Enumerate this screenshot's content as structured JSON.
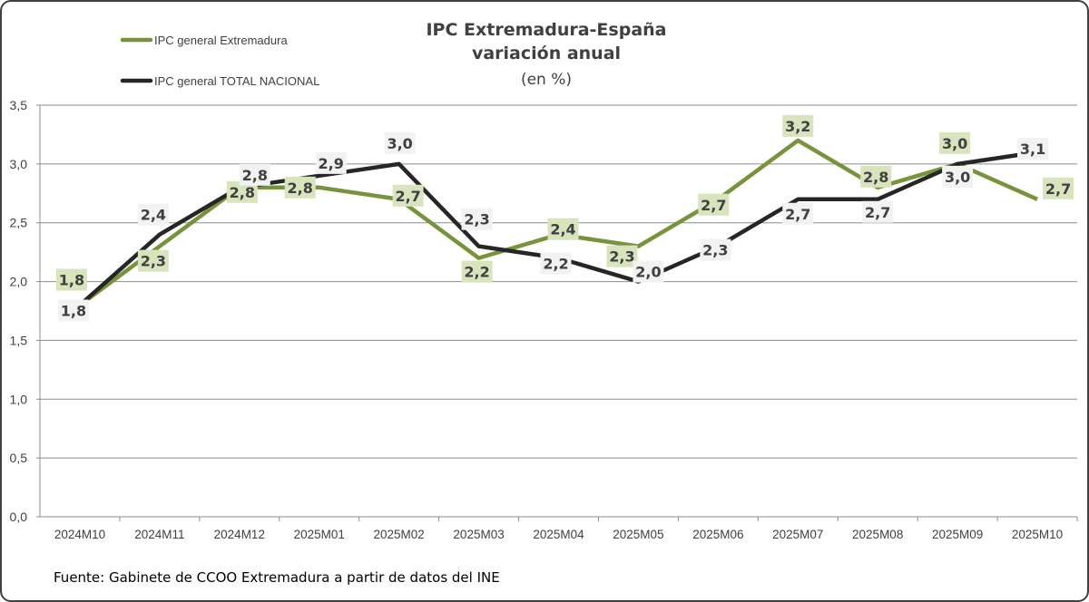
{
  "chart_data": {
    "type": "line",
    "title": "IPC Extremadura-España",
    "subtitle": "variación anual",
    "subtitle2": "(en %)",
    "categories": [
      "2024M10",
      "2024M11",
      "2024M12",
      "2025M01",
      "2025M02",
      "2025M03",
      "2025M04",
      "2025M05",
      "2025M06",
      "2025M07",
      "2025M08",
      "2025M09",
      "2025M10"
    ],
    "ylim": [
      0,
      3.5
    ],
    "yticks": [
      "0,0",
      "0,5",
      "1,0",
      "1,5",
      "2,0",
      "2,5",
      "3,0",
      "3,5"
    ],
    "grid": true,
    "legend_position": "top-left",
    "series": [
      {
        "name": "IPC general Extremadura",
        "color": "#77933c",
        "label_bg": "#d7e4bd",
        "values": [
          1.8,
          2.3,
          2.8,
          2.8,
          2.7,
          2.2,
          2.4,
          2.3,
          2.7,
          3.2,
          2.8,
          3.0,
          2.7
        ]
      },
      {
        "name": "IPC general TOTAL NACIONAL",
        "color": "#262626",
        "label_bg": "#f2f2f2",
        "values": [
          1.8,
          2.4,
          2.8,
          2.9,
          3.0,
          2.3,
          2.2,
          2.0,
          2.3,
          2.7,
          2.7,
          3.0,
          3.1
        ]
      }
    ],
    "source": "Fuente: Gabinete de CCOO Extremadura a partir de datos del INE"
  }
}
